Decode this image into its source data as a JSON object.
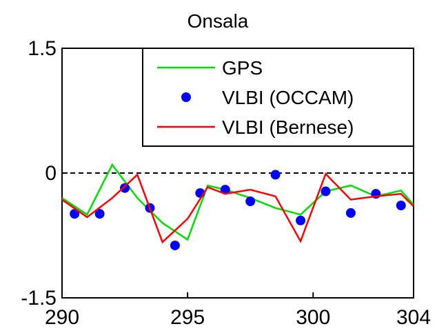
{
  "chart_data": {
    "type": "line",
    "title": "Onsala",
    "xlabel": "",
    "ylabel": "",
    "xlim": [
      290,
      304
    ],
    "ylim": [
      -1.5,
      1.5
    ],
    "xticks": [
      290,
      295,
      300,
      304
    ],
    "xtick_labels": [
      "290",
      "295",
      "300",
      "304"
    ],
    "yticks": [
      -1.5,
      0,
      1.5
    ],
    "ytick_labels": [
      "-1.5",
      "0",
      "1.5"
    ],
    "grid": false,
    "legend_position": "top-right",
    "reference_line": {
      "y": 0,
      "style": "dashed"
    },
    "series": [
      {
        "name": "GPS",
        "kind": "line",
        "color": "#00e000",
        "x": [
          290.0,
          291.0,
          292.0,
          293.0,
          294.0,
          295.0,
          295.8,
          296.5,
          297.5,
          298.5,
          299.5,
          300.5,
          301.5,
          302.5,
          303.5,
          304.0
        ],
        "y": [
          -0.3,
          -0.5,
          0.1,
          -0.3,
          -0.6,
          -0.8,
          -0.15,
          -0.2,
          -0.3,
          -0.42,
          -0.5,
          -0.22,
          -0.15,
          -0.28,
          -0.21,
          -0.38
        ]
      },
      {
        "name": "VLBI (OCCAM)",
        "kind": "scatter",
        "color": "#0000ff",
        "x": [
          290.5,
          291.5,
          292.5,
          293.5,
          294.5,
          295.5,
          296.5,
          297.5,
          298.5,
          299.5,
          300.5,
          301.5,
          302.5,
          303.5
        ],
        "y": [
          -0.49,
          -0.49,
          -0.18,
          -0.42,
          -0.87,
          -0.24,
          -0.2,
          -0.34,
          -0.02,
          -0.57,
          -0.22,
          -0.48,
          -0.25,
          -0.39
        ]
      },
      {
        "name": "VLBI (Bernese)",
        "kind": "line",
        "color": "#ff0000",
        "x": [
          290.0,
          291.0,
          292.0,
          293.0,
          294.0,
          295.0,
          295.8,
          296.5,
          297.5,
          298.5,
          299.5,
          300.5,
          301.5,
          302.5,
          303.5,
          304.0
        ],
        "y": [
          -0.32,
          -0.53,
          -0.3,
          -0.02,
          -0.83,
          -0.55,
          -0.17,
          -0.25,
          -0.2,
          -0.28,
          -0.82,
          -0.01,
          -0.32,
          -0.28,
          -0.25,
          -0.4
        ]
      }
    ]
  }
}
